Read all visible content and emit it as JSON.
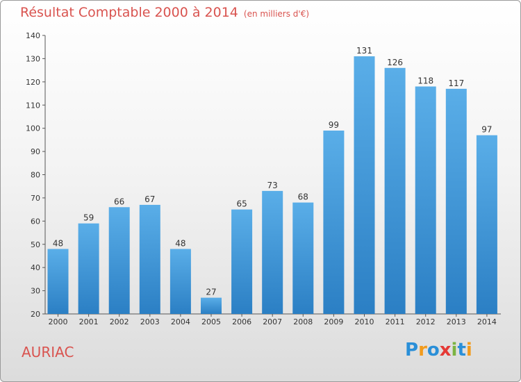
{
  "chart_data": {
    "type": "bar",
    "title": "Résultat Comptable 2000 à 2014",
    "subtitle": "(en milliers d'€)",
    "categories": [
      "2000",
      "2001",
      "2002",
      "2003",
      "2004",
      "2005",
      "2006",
      "2007",
      "2008",
      "2009",
      "2010",
      "2011",
      "2012",
      "2013",
      "2014"
    ],
    "values": [
      48,
      59,
      66,
      67,
      48,
      27,
      65,
      73,
      68,
      99,
      131,
      126,
      118,
      117,
      97
    ],
    "ylim": [
      20,
      140
    ],
    "yticks": [
      20,
      30,
      40,
      50,
      60,
      70,
      80,
      90,
      100,
      110,
      120,
      130,
      140
    ],
    "xlabel": "",
    "ylabel": "",
    "grid": false,
    "colors": {
      "bar_light": "#5aaee8",
      "bar_dark": "#2b7fc4",
      "title": "#d9534f"
    }
  },
  "commune": "AURIAC",
  "logo": {
    "text": "Proxiti",
    "letters": [
      {
        "ch": "P",
        "color": "#2a8fd8"
      },
      {
        "ch": "r",
        "color": "#f29b1d"
      },
      {
        "ch": "o",
        "color": "#2a8fd8"
      },
      {
        "ch": "x",
        "color": "#e53935"
      },
      {
        "ch": "i",
        "color": "#7cb342"
      },
      {
        "ch": "t",
        "color": "#2a8fd8"
      },
      {
        "ch": "i",
        "color": "#f29b1d"
      }
    ]
  }
}
